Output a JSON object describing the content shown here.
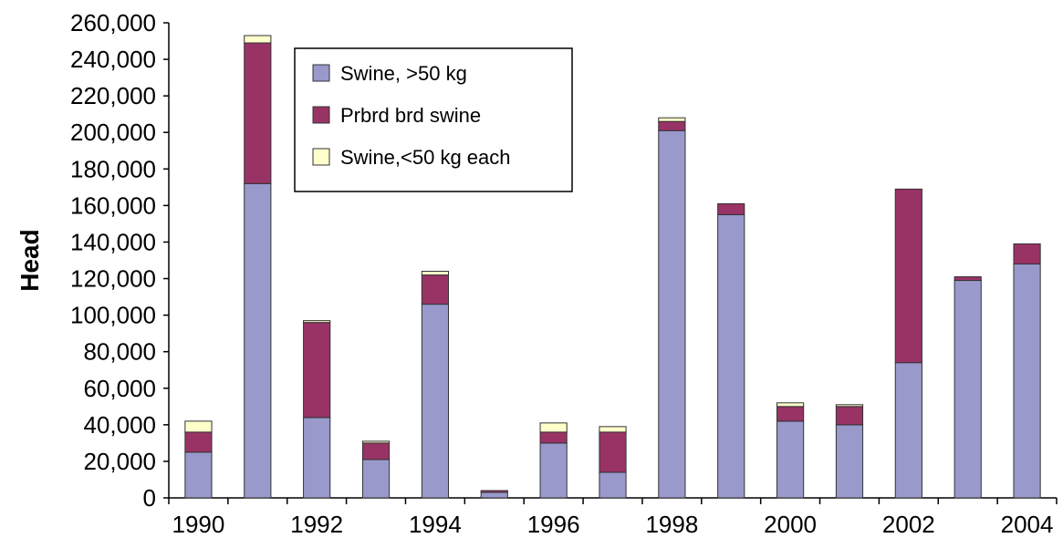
{
  "chart_data": {
    "type": "bar",
    "stacked": true,
    "title": "",
    "xlabel": "",
    "ylabel": "Head",
    "ylim": [
      0,
      260000
    ],
    "y_ticks": [
      "0",
      "20,000",
      "40,000",
      "60,000",
      "80,000",
      "100,000",
      "120,000",
      "140,000",
      "160,000",
      "180,000",
      "200,000",
      "220,000",
      "240,000",
      "260,000"
    ],
    "x_ticks": [
      "1990",
      "1992",
      "1994",
      "1996",
      "1998",
      "2000",
      "2002",
      "2004"
    ],
    "categories": [
      "1990",
      "1991",
      "1992",
      "1993",
      "1994",
      "1995",
      "1996",
      "1997",
      "1998",
      "1999",
      "2000",
      "2001",
      "2002",
      "2003",
      "2004"
    ],
    "series": [
      {
        "name": "Swine, >50 kg",
        "color": "#9999cc",
        "values": [
          25000,
          172000,
          44000,
          21000,
          106000,
          3000,
          30000,
          14000,
          201000,
          155000,
          42000,
          40000,
          74000,
          119000,
          128000
        ]
      },
      {
        "name": "Prbrd brd swine",
        "color": "#993366",
        "values": [
          11000,
          77000,
          52000,
          9000,
          16000,
          1000,
          6000,
          22000,
          5000,
          6000,
          8000,
          10000,
          95000,
          2000,
          11000
        ]
      },
      {
        "name": "Swine,<50 kg each",
        "color": "#ffffcc",
        "values": [
          6000,
          4000,
          1000,
          1000,
          2000,
          0,
          5000,
          3000,
          2000,
          0,
          2000,
          1000,
          0,
          0,
          0
        ]
      }
    ],
    "grid": false,
    "legend_position": "top-center"
  }
}
